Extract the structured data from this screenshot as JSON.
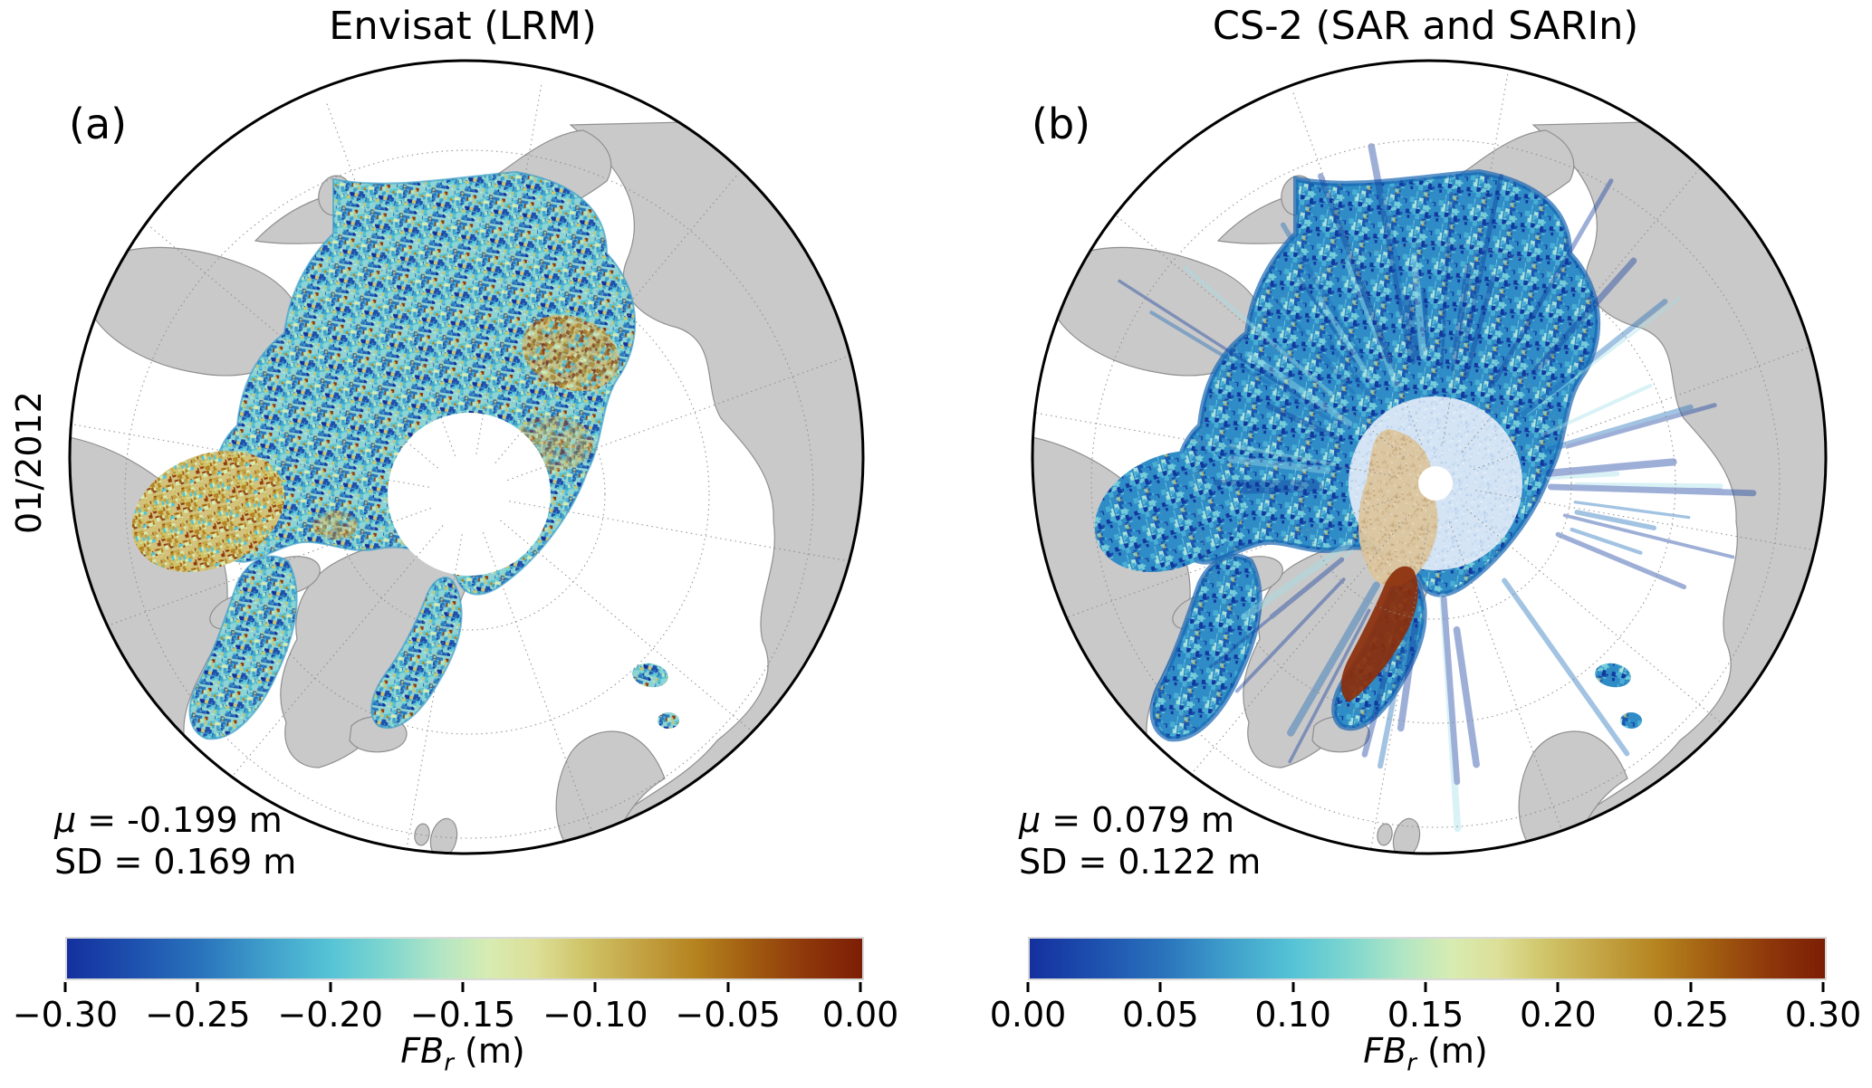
{
  "figure": {
    "background": "#ffffff",
    "row_label": "01/2012"
  },
  "colormap_stops": [
    [
      "#14309e",
      0
    ],
    [
      "#1d4fae",
      8
    ],
    [
      "#2a74bc",
      17
    ],
    [
      "#3f9fcb",
      25
    ],
    [
      "#55c3d6",
      33
    ],
    [
      "#7dd6cf",
      40
    ],
    [
      "#b2e6c4",
      47
    ],
    [
      "#d7ecb2",
      53
    ],
    [
      "#dcdf97",
      59
    ],
    [
      "#cfc468",
      65
    ],
    [
      "#c3a343",
      72
    ],
    [
      "#b5831f",
      79
    ],
    [
      "#a15c10",
      86
    ],
    [
      "#8e370b",
      93
    ],
    [
      "#7c1e05",
      100
    ]
  ],
  "map_colors": {
    "land": "#c9c9c9",
    "coast": "#8f8f8f",
    "ocean": "#ffffff",
    "graticule": "#8a8a8a",
    "outline": "#000000",
    "cs2_pale_center": "#d4e4f4",
    "cs2_tan_patch": "#dbc59e",
    "cs2_red_strip": "#8c2e0a"
  },
  "panels": [
    {
      "letter": "(a)",
      "title": "Envisat (LRM)",
      "stats": {
        "mu_symbol": "μ",
        "mu_rest": " = -0.199 m",
        "sd": "SD = 0.169 m"
      },
      "colorbar": {
        "ticks": [
          "−0.30",
          "−0.25",
          "−0.20",
          "−0.15",
          "−0.10",
          "−0.05",
          "0.00"
        ],
        "range": [
          -0.3,
          0.0
        ],
        "label": {
          "var": "FB",
          "sub": "r",
          "unit": " (m)"
        }
      },
      "map": {
        "style": "speckled",
        "base": "#8fd4d4",
        "palette": [
          "#14309e",
          "#1d4fae",
          "#2a74bc",
          "#3f9fcb",
          "#55c3d6",
          "#55c3d6",
          "#7dd6cf",
          "#b2e6c4",
          "#d7ecb2",
          "#2a74bc",
          "#1d4fae",
          "#3f9fcb",
          "#cfc468",
          "#b5831f",
          "#8e370b"
        ],
        "gold_base": "#d2c27c",
        "gold_palette": [
          "#c3a343",
          "#b5831f",
          "#a15c10",
          "#8e370b",
          "#cfc468",
          "#d7ecb2",
          "#55c3d6"
        ],
        "pole_hole_radius": 90
      }
    },
    {
      "letter": "(b)",
      "title": "CS-2 (SAR and SARIn)",
      "stats": {
        "mu_symbol": "μ",
        "mu_rest": " = 0.079 m",
        "sd": "SD = 0.122 m"
      },
      "colorbar": {
        "ticks": [
          "0.00",
          "0.05",
          "0.10",
          "0.15",
          "0.20",
          "0.25",
          "0.30"
        ],
        "range": [
          0.0,
          0.3
        ],
        "label": {
          "var": "FB",
          "sub": "r",
          "unit": " (m)"
        }
      },
      "map": {
        "style": "streaked",
        "base": "#2f8cc6",
        "palette": [
          "#12379e",
          "#1a5ab2",
          "#2f8cc6",
          "#49aed4",
          "#75cdda",
          "#a8e2dc",
          "#1a5ab2",
          "#2f8cc6",
          "#12379e",
          "#49aed4",
          "#c3a343"
        ],
        "pale_base": "#d4e4f4",
        "pale_palette": [
          "#b8d0ec",
          "#c8dcf2",
          "#e4eef8"
        ],
        "tan_base": "#dbc59e",
        "tan_palette": [
          "#cfb286",
          "#c7a878",
          "#e6d4b4"
        ],
        "pole_hole_radius": 19
      }
    }
  ],
  "chart_data": [
    {
      "type": "heatmap",
      "title": "Envisat (LRM)",
      "panel": "(a)",
      "time_label": "01/2012",
      "variable": "FB_r (m)",
      "colorbar_range": [
        -0.3,
        0.0
      ],
      "colorbar_ticks": [
        -0.3,
        -0.25,
        -0.2,
        -0.15,
        -0.1,
        -0.05,
        0.0
      ],
      "mean": -0.199,
      "sd": 0.169,
      "units": "m",
      "projection": "north-polar-stereographic"
    },
    {
      "type": "heatmap",
      "title": "CS-2 (SAR and SARIn)",
      "panel": "(b)",
      "time_label": "01/2012",
      "variable": "FB_r (m)",
      "colorbar_range": [
        0.0,
        0.3
      ],
      "colorbar_ticks": [
        0.0,
        0.05,
        0.1,
        0.15,
        0.2,
        0.25,
        0.3
      ],
      "mean": 0.079,
      "sd": 0.122,
      "units": "m",
      "projection": "north-polar-stereographic"
    }
  ]
}
